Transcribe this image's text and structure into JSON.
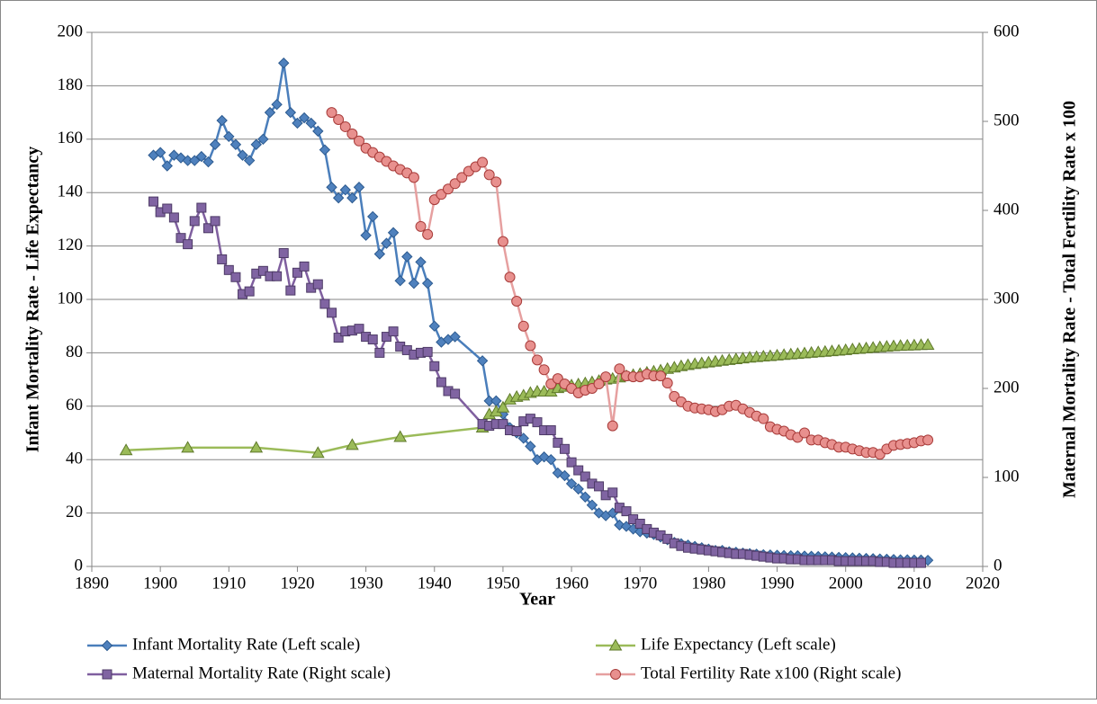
{
  "chart_data": {
    "type": "line",
    "xlabel": "Year",
    "ylabel": "Infant Mortality Rate  -  Life Expectancy",
    "y2label": "Maternal Mortality Rate  - Total Fertility Rate x 100",
    "xlim": [
      1890,
      2020
    ],
    "xticks": [
      1890,
      1900,
      1910,
      1920,
      1930,
      1940,
      1950,
      1960,
      1970,
      1980,
      1990,
      2000,
      2010,
      2020
    ],
    "ylim": [
      0,
      200
    ],
    "yticks": [
      0,
      20,
      40,
      60,
      80,
      100,
      120,
      140,
      160,
      180,
      200
    ],
    "y2lim": [
      0,
      600
    ],
    "y2ticks": [
      0,
      100,
      200,
      300,
      400,
      500,
      600
    ],
    "grid": true,
    "legend": "bottom",
    "series": [
      {
        "name": "Infant Mortality Rate (Left scale)",
        "color": "#4a7ebb",
        "marker_color": "#4f81bd",
        "marker_edge": "#2c5a8f",
        "marker": "diamond",
        "axis": "y",
        "x": [
          1899,
          1900,
          1901,
          1902,
          1903,
          1904,
          1905,
          1906,
          1907,
          1908,
          1909,
          1910,
          1911,
          1912,
          1913,
          1914,
          1915,
          1916,
          1917,
          1918,
          1919,
          1920,
          1921,
          1922,
          1923,
          1924,
          1925,
          1926,
          1927,
          1928,
          1929,
          1930,
          1931,
          1932,
          1933,
          1934,
          1935,
          1936,
          1937,
          1938,
          1939,
          1940,
          1941,
          1942,
          1943,
          1947,
          1948,
          1949,
          1950,
          1951,
          1952,
          1953,
          1954,
          1955,
          1956,
          1957,
          1958,
          1959,
          1960,
          1961,
          1962,
          1963,
          1964,
          1965,
          1966,
          1967,
          1968,
          1969,
          1970,
          1971,
          1972,
          1973,
          1974,
          1975,
          1976,
          1977,
          1978,
          1979,
          1980,
          1981,
          1982,
          1983,
          1984,
          1985,
          1986,
          1987,
          1988,
          1989,
          1990,
          1991,
          1992,
          1993,
          1994,
          1995,
          1996,
          1997,
          1998,
          1999,
          2000,
          2001,
          2002,
          2003,
          2004,
          2005,
          2006,
          2007,
          2008,
          2009,
          2010,
          2011,
          2012
        ],
        "values": [
          154,
          155,
          150,
          154,
          153,
          152,
          152,
          153.5,
          151.5,
          158,
          167,
          161,
          158,
          154,
          152,
          158,
          160,
          170,
          173,
          188.5,
          170,
          166,
          168,
          166,
          163,
          156,
          142,
          138,
          141,
          138,
          142,
          124,
          131,
          117,
          121,
          125,
          107,
          116,
          106,
          114,
          106,
          90,
          84,
          85,
          86,
          77,
          62,
          62,
          57,
          52,
          50,
          48,
          45,
          40,
          41,
          40,
          35,
          34,
          31,
          29,
          26,
          23,
          20,
          19,
          20,
          15.5,
          15,
          14,
          13,
          12.5,
          12,
          11,
          10,
          9,
          8.5,
          8,
          7.5,
          7,
          6.5,
          6,
          6,
          5.5,
          5.3,
          5,
          4.8,
          4.6,
          4.4,
          4.3,
          4.2,
          4.1,
          4,
          4,
          3.9,
          3.8,
          3.7,
          3.6,
          3.5,
          3.4,
          3.3,
          3.2,
          3.1,
          3.0,
          2.9,
          2.8,
          2.7,
          2.6,
          2.5,
          2.5,
          2.4,
          2.4,
          2.3
        ]
      },
      {
        "name": "Life Expectancy (Left scale)",
        "color": "#9bbb59",
        "marker_color": "#9bbb59",
        "marker_edge": "#5f7a2b",
        "marker": "triangle",
        "axis": "y",
        "x": [
          1895,
          1904,
          1914,
          1923,
          1928,
          1935,
          1947,
          1948,
          1949,
          1950,
          1951,
          1952,
          1953,
          1954,
          1955,
          1956,
          1957,
          1958,
          1959,
          1960,
          1961,
          1962,
          1963,
          1964,
          1965,
          1966,
          1967,
          1968,
          1969,
          1970,
          1971,
          1972,
          1973,
          1974,
          1975,
          1976,
          1977,
          1978,
          1979,
          1980,
          1981,
          1982,
          1983,
          1984,
          1985,
          1986,
          1987,
          1988,
          1989,
          1990,
          1991,
          1992,
          1993,
          1994,
          1995,
          1996,
          1997,
          1998,
          1999,
          2000,
          2001,
          2002,
          2003,
          2004,
          2005,
          2006,
          2007,
          2008,
          2009,
          2010,
          2011,
          2012
        ],
        "values": [
          43.5,
          44.5,
          44.5,
          42.5,
          45.5,
          48.5,
          52,
          57,
          58,
          59.5,
          62.5,
          63.5,
          64,
          65,
          65.5,
          65.5,
          65.5,
          66.8,
          67.3,
          67.8,
          68.2,
          68.6,
          69,
          69.5,
          70,
          70.3,
          70.8,
          71.3,
          71.7,
          72.1,
          72.6,
          73,
          73.4,
          74,
          74.5,
          75,
          75.4,
          75.8,
          76.1,
          76.4,
          76.7,
          77,
          77.3,
          77.6,
          77.9,
          78.2,
          78.4,
          78.6,
          78.8,
          79,
          79.2,
          79.4,
          79.6,
          79.8,
          80,
          80.2,
          80.4,
          80.6,
          80.8,
          81,
          81.3,
          81.5,
          81.7,
          81.9,
          82.1,
          82.3,
          82.5,
          82.6,
          82.7,
          82.8,
          82.9,
          83
        ]
      },
      {
        "name": "Maternal Mortality Rate (Right scale)",
        "color": "#7f5f9f",
        "marker_color": "#8064a2",
        "marker_edge": "#4d3a66",
        "marker": "square",
        "axis": "y2",
        "x": [
          1899,
          1900,
          1901,
          1902,
          1903,
          1904,
          1905,
          1906,
          1907,
          1908,
          1909,
          1910,
          1911,
          1912,
          1913,
          1914,
          1915,
          1916,
          1917,
          1918,
          1919,
          1920,
          1921,
          1922,
          1923,
          1924,
          1925,
          1926,
          1927,
          1928,
          1929,
          1930,
          1931,
          1932,
          1933,
          1934,
          1935,
          1936,
          1937,
          1938,
          1939,
          1940,
          1941,
          1942,
          1943,
          1947,
          1948,
          1949,
          1950,
          1951,
          1952,
          1953,
          1954,
          1955,
          1956,
          1957,
          1958,
          1959,
          1960,
          1961,
          1962,
          1963,
          1964,
          1965,
          1966,
          1967,
          1968,
          1969,
          1970,
          1971,
          1972,
          1973,
          1974,
          1975,
          1976,
          1977,
          1978,
          1979,
          1980,
          1981,
          1982,
          1983,
          1984,
          1985,
          1986,
          1987,
          1988,
          1989,
          1990,
          1991,
          1992,
          1993,
          1994,
          1995,
          1996,
          1997,
          1998,
          1999,
          2000,
          2001,
          2002,
          2003,
          2004,
          2005,
          2006,
          2007,
          2008,
          2009,
          2010,
          2011
        ],
        "values": [
          410,
          398,
          402,
          392,
          369,
          362,
          388,
          403,
          380,
          388,
          345,
          333,
          325,
          306,
          309,
          329,
          332,
          326,
          326,
          352,
          310,
          330,
          337,
          313,
          317,
          295,
          285,
          257,
          264,
          265,
          267,
          258,
          255,
          240,
          258,
          264,
          247,
          243,
          238,
          240,
          241,
          225,
          207,
          197,
          194,
          160,
          158,
          160,
          160,
          153,
          152,
          163,
          166,
          162,
          153,
          153,
          139,
          132,
          117,
          108,
          101,
          93,
          90,
          80,
          83,
          66,
          62,
          53,
          48,
          42,
          38,
          35,
          31,
          26,
          23,
          21,
          20,
          19,
          18,
          17,
          16,
          15,
          14,
          14,
          13,
          12,
          11,
          10,
          9,
          9,
          8,
          8,
          7,
          7,
          7,
          7,
          7,
          6,
          6,
          6,
          6,
          6,
          6,
          5,
          5,
          4,
          4,
          4,
          4,
          4
        ]
      },
      {
        "name": "Total Fertility Rate x100 (Right scale)",
        "color": "#e6a0a0",
        "marker_color": "#e8908e",
        "marker_edge": "#a83c3a",
        "marker": "circle",
        "axis": "y2",
        "x": [
          1925,
          1926,
          1927,
          1928,
          1929,
          1930,
          1931,
          1932,
          1933,
          1934,
          1935,
          1936,
          1937,
          1938,
          1939,
          1940,
          1941,
          1942,
          1943,
          1944,
          1945,
          1946,
          1947,
          1948,
          1949,
          1950,
          1951,
          1952,
          1953,
          1954,
          1955,
          1956,
          1957,
          1958,
          1959,
          1960,
          1961,
          1962,
          1963,
          1964,
          1965,
          1966,
          1967,
          1968,
          1969,
          1970,
          1971,
          1972,
          1973,
          1974,
          1975,
          1976,
          1977,
          1978,
          1979,
          1980,
          1981,
          1982,
          1983,
          1984,
          1985,
          1986,
          1987,
          1988,
          1989,
          1990,
          1991,
          1992,
          1993,
          1994,
          1995,
          1996,
          1997,
          1998,
          1999,
          2000,
          2001,
          2002,
          2003,
          2004,
          2005,
          2006,
          2007,
          2008,
          2009,
          2010,
          2011,
          2012
        ],
        "values": [
          510,
          502,
          494,
          486,
          478,
          470,
          465,
          460,
          455,
          450,
          446,
          442,
          437,
          382,
          373,
          412,
          418,
          424,
          430,
          437,
          444,
          449,
          454,
          440,
          432,
          365,
          325,
          298,
          270,
          248,
          232,
          221,
          205,
          211,
          205,
          200,
          195,
          198,
          200,
          205,
          213,
          158,
          222,
          214,
          213,
          213,
          216,
          214,
          214,
          206,
          191,
          185,
          180,
          178,
          177,
          176,
          174,
          176,
          180,
          181,
          177,
          173,
          169,
          166,
          157,
          154,
          152,
          148,
          145,
          150,
          142,
          142,
          139,
          137,
          134,
          134,
          132,
          130,
          128,
          128,
          126,
          132,
          136,
          137,
          138,
          139,
          141,
          142
        ]
      }
    ]
  }
}
